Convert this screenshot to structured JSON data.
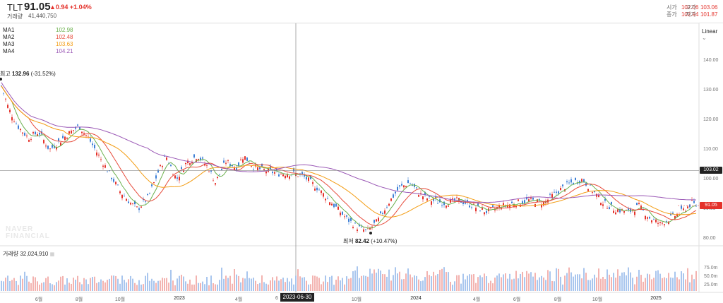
{
  "header": {
    "symbol": "TLT",
    "price": "91.05",
    "change": "▲0.94 +1.04%",
    "volume_label": "거래량",
    "volume_value": "41,440,750",
    "open_label": "시가",
    "open_value": "102.06",
    "high_label": "고가",
    "high_value": "103.06",
    "close_label": "종가",
    "close_value": "102.94",
    "low_label": "저가",
    "low_value": "101.87"
  },
  "legend": [
    {
      "name": "MA1",
      "value": "102.98",
      "color": "#6ab04c"
    },
    {
      "name": "MA2",
      "value": "102.48",
      "color": "#e74c3c"
    },
    {
      "name": "MA3",
      "value": "103.63",
      "color": "#f39c12"
    },
    {
      "name": "MA4",
      "value": "104.21",
      "color": "#9b59b6"
    }
  ],
  "scale_label": "Linear",
  "y_axis": {
    "ticks": [
      "140.00",
      "130.00",
      "120.00",
      "110.00",
      "100.00",
      "90.00",
      "80.00"
    ],
    "min": 78,
    "max": 150
  },
  "crosshair_value": "103.02",
  "current_value": "91.05",
  "annotations": {
    "high": {
      "label": "최고",
      "value": "132.96",
      "pct": "(-31.52%)"
    },
    "low": {
      "label": "최저",
      "value": "82.42",
      "pct": "(+10.47%)"
    }
  },
  "watermark": [
    "NAVER",
    "FINANCIAL"
  ],
  "volume_panel": {
    "label": "거래량",
    "value": "32,024,910",
    "ticks": [
      "75.0m",
      "50.0m",
      "25.0m"
    ]
  },
  "x_axis": {
    "labels": [
      "6월",
      "8월",
      "10월",
      "2023",
      "4월",
      "6",
      "10월",
      "2024",
      "4월",
      "6월",
      "8월",
      "10월",
      "2025"
    ],
    "bold": [
      "2023",
      "2024",
      "2025"
    ],
    "selected": "2023-06-30"
  },
  "colors": {
    "up": "#e4322b",
    "down": "#3d7fd6",
    "ma1": "#6ab04c",
    "ma2": "#e74c3c",
    "ma3": "#f39c12",
    "ma4": "#9b59b6"
  }
}
